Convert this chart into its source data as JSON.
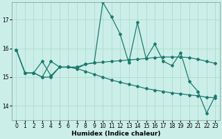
{
  "title": "",
  "xlabel": "Humidex (Indice chaleur)",
  "ylabel": "",
  "background_color": "#cceee8",
  "grid_color": "#aaddcc",
  "line_color": "#1a7a6e",
  "xlim": [
    -0.5,
    23.5
  ],
  "ylim": [
    13.5,
    17.6
  ],
  "yticks": [
    14,
    15,
    16,
    17
  ],
  "xtick_labels": [
    "0",
    "1",
    "2",
    "3",
    "4",
    "5",
    "6",
    "7",
    "8",
    "9",
    "10",
    "11",
    "12",
    "13",
    "14",
    "15",
    "16",
    "17",
    "18",
    "19",
    "20",
    "21",
    "22",
    "23"
  ],
  "series_jagged_x": [
    0,
    1,
    2,
    3,
    4,
    5,
    6,
    7,
    8,
    9,
    10,
    11,
    12,
    13,
    14,
    15,
    16,
    17,
    18,
    19,
    20,
    21,
    22,
    23
  ],
  "series_jagged_y": [
    15.95,
    15.15,
    15.15,
    15.55,
    15.05,
    15.35,
    15.35,
    15.35,
    15.45,
    15.5,
    17.6,
    17.1,
    16.5,
    15.5,
    16.9,
    15.65,
    16.15,
    15.55,
    15.4,
    15.85,
    14.85,
    14.5,
    13.75,
    14.35
  ],
  "series_trend1_x": [
    0,
    1,
    2,
    3,
    4,
    5,
    6,
    7,
    8,
    9,
    10,
    11,
    12,
    13,
    14,
    15,
    16,
    17,
    18,
    19,
    20,
    21,
    22,
    23
  ],
  "series_trend1_y": [
    15.95,
    15.15,
    15.15,
    15.0,
    15.55,
    15.35,
    15.35,
    15.3,
    15.45,
    15.5,
    15.52,
    15.55,
    15.57,
    15.6,
    15.62,
    15.65,
    15.68,
    15.7,
    15.7,
    15.7,
    15.68,
    15.62,
    15.55,
    15.48
  ],
  "series_decline_x": [
    0,
    1,
    2,
    3,
    4,
    5,
    6,
    7,
    8,
    9,
    10,
    11,
    12,
    13,
    14,
    15,
    16,
    17,
    18,
    19,
    20,
    21,
    22,
    23
  ],
  "series_decline_y": [
    15.95,
    15.15,
    15.15,
    15.0,
    15.0,
    15.35,
    15.35,
    15.3,
    15.2,
    15.1,
    15.0,
    14.9,
    14.82,
    14.75,
    14.68,
    14.6,
    14.55,
    14.5,
    14.45,
    14.42,
    14.38,
    14.35,
    14.3,
    14.28
  ],
  "marker": "D",
  "markersize": 2.0,
  "linewidth": 0.9
}
